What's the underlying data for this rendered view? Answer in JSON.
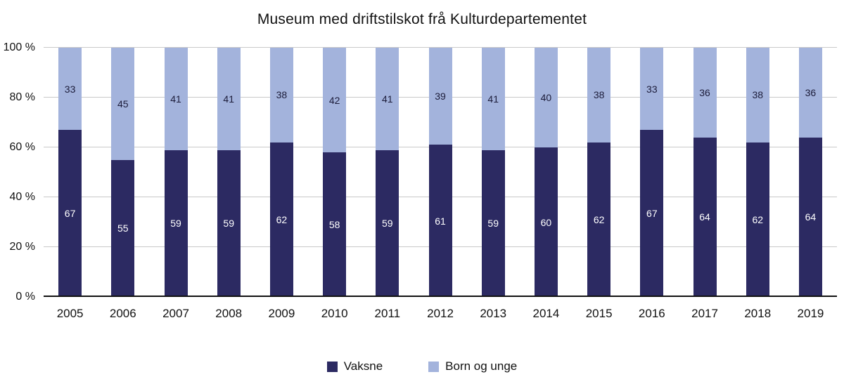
{
  "chart_data": {
    "type": "bar",
    "stacked": true,
    "title": "Museum med driftstilskot frå Kulturdepartementet",
    "categories": [
      "2005",
      "2006",
      "2007",
      "2008",
      "2009",
      "2010",
      "2011",
      "2012",
      "2013",
      "2014",
      "2015",
      "2016",
      "2017",
      "2018",
      "2019"
    ],
    "series": [
      {
        "name": "Vaksne",
        "color": "#2c2a62",
        "label_color": "#ffffff",
        "values": [
          67,
          55,
          59,
          59,
          62,
          58,
          59,
          61,
          59,
          60,
          62,
          67,
          64,
          62,
          64
        ]
      },
      {
        "name": "Born og unge",
        "color": "#a3b3dc",
        "label_color": "#1c1c3a",
        "values": [
          33,
          45,
          41,
          41,
          38,
          42,
          41,
          39,
          41,
          40,
          38,
          33,
          36,
          38,
          36
        ]
      }
    ],
    "yticks": [
      {
        "label": "0 %",
        "value": 0
      },
      {
        "label": "20 %",
        "value": 20
      },
      {
        "label": "40 %",
        "value": 40
      },
      {
        "label": "60 %",
        "value": 60
      },
      {
        "label": "80 %",
        "value": 80
      },
      {
        "label": "100 %",
        "value": 100
      }
    ],
    "ylim": [
      0,
      100
    ],
    "grid": true,
    "legend_position": "bottom"
  },
  "colors": {
    "background": "#ffffff",
    "grid": "#c9c9c9",
    "axis": "#111111",
    "text": "#111111"
  }
}
